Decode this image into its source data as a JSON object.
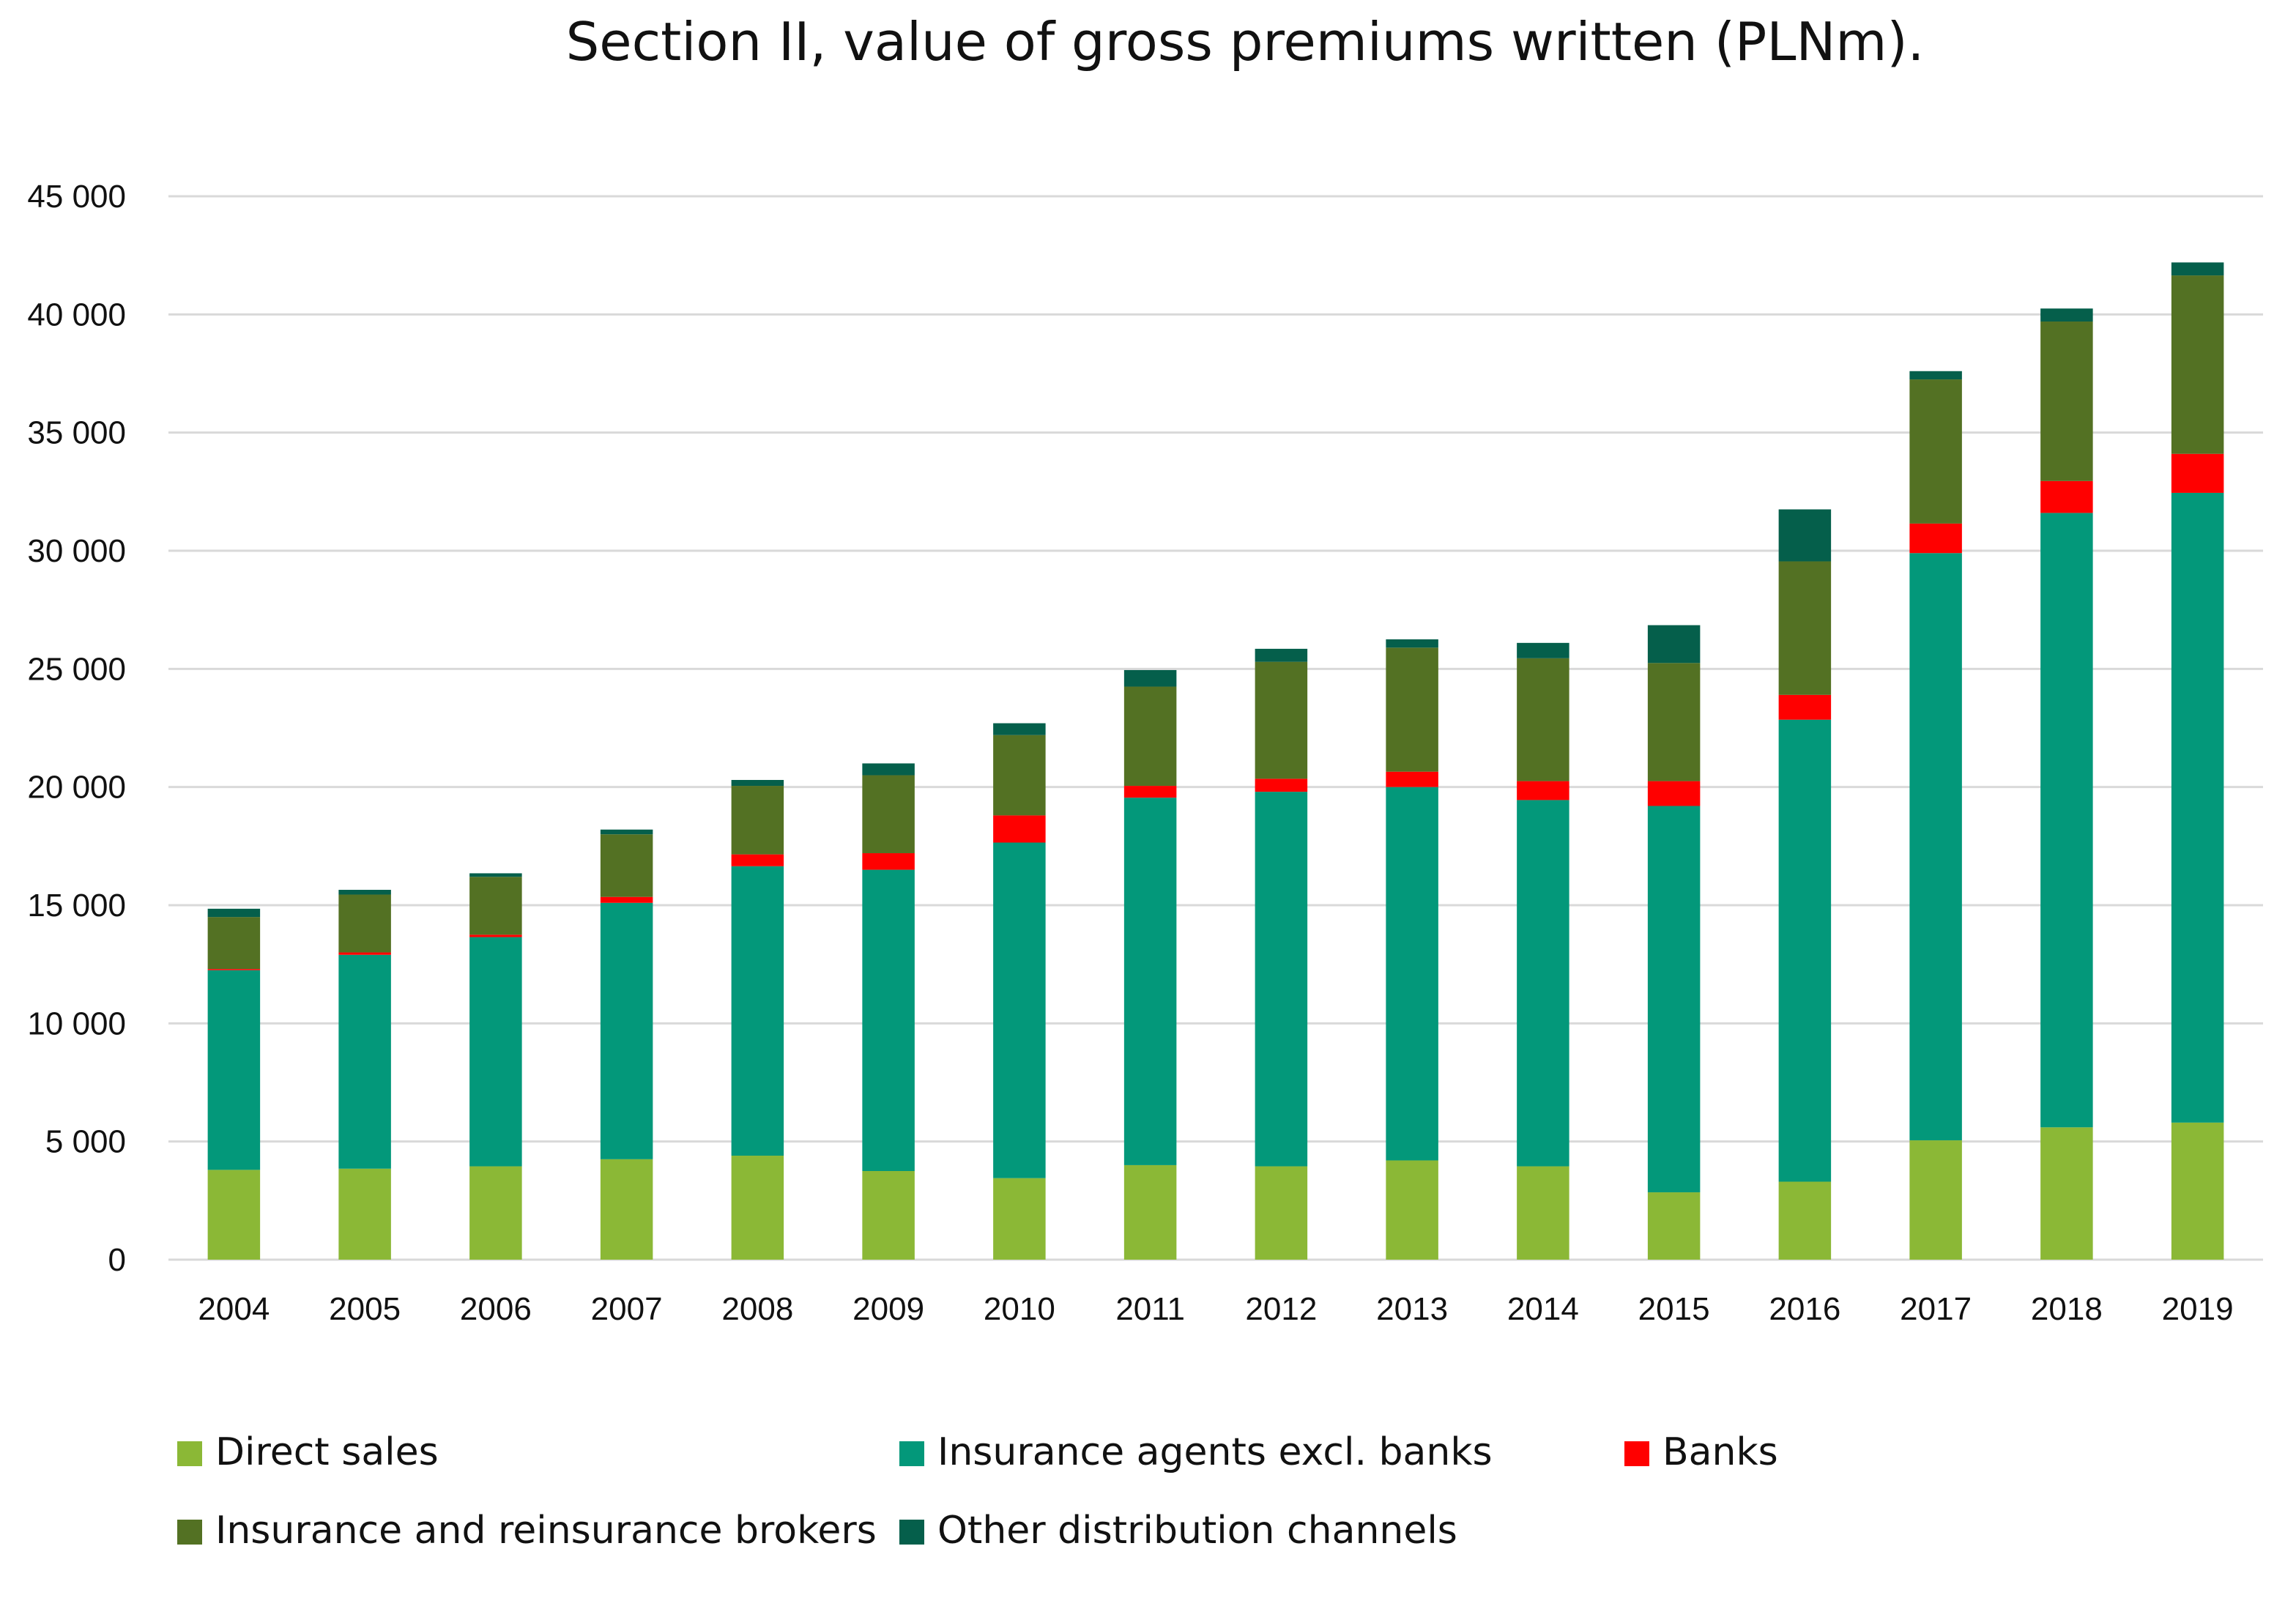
{
  "chart_data": {
    "type": "bar",
    "stacked": true,
    "title": "Section II, value of gross premiums written (PLNm).",
    "xlabel": "",
    "ylabel": "",
    "ylim": [
      0,
      45000
    ],
    "yticks": [
      0,
      5000,
      10000,
      15000,
      20000,
      25000,
      30000,
      35000,
      40000,
      45000
    ],
    "ytick_labels": [
      "0",
      "5 000",
      "10 000",
      "15 000",
      "20 000",
      "25 000",
      "30 000",
      "35 000",
      "40 000",
      "45 000"
    ],
    "grid": "horizontal",
    "legend_position": "bottom",
    "categories": [
      "2004",
      "2005",
      "2006",
      "2007",
      "2008",
      "2009",
      "2010",
      "2011",
      "2012",
      "2013",
      "2014",
      "2015",
      "2016",
      "2017",
      "2018",
      "2019"
    ],
    "series": [
      {
        "name": "Direct sales",
        "color": "#8BB836",
        "values": [
          3800,
          3850,
          3950,
          4250,
          4400,
          3750,
          3450,
          4000,
          3950,
          4200,
          3950,
          2850,
          3300,
          5050,
          5600,
          5800
        ]
      },
      {
        "name": "Insurance agents excl. banks",
        "color": "#03987A",
        "values": [
          8450,
          9050,
          9700,
          10850,
          12250,
          12750,
          14200,
          15550,
          15850,
          15800,
          15500,
          16350,
          19550,
          24850,
          26000,
          26650
        ]
      },
      {
        "name": "Banks",
        "color": "#FF0000",
        "values": [
          50,
          100,
          100,
          250,
          500,
          700,
          1150,
          500,
          550,
          650,
          800,
          1050,
          1050,
          1250,
          1350,
          1650
        ]
      },
      {
        "name": "Insurance and reinsurance brokers",
        "color": "#537123",
        "values": [
          2200,
          2450,
          2450,
          2650,
          2900,
          3300,
          3400,
          4200,
          4950,
          5250,
          5200,
          5000,
          5650,
          6100,
          6750,
          7550
        ]
      },
      {
        "name": "Other distribution channels",
        "color": "#055F4B",
        "values": [
          350,
          200,
          150,
          200,
          250,
          500,
          500,
          700,
          550,
          350,
          650,
          1600,
          2200,
          350,
          550,
          550
        ]
      }
    ]
  }
}
